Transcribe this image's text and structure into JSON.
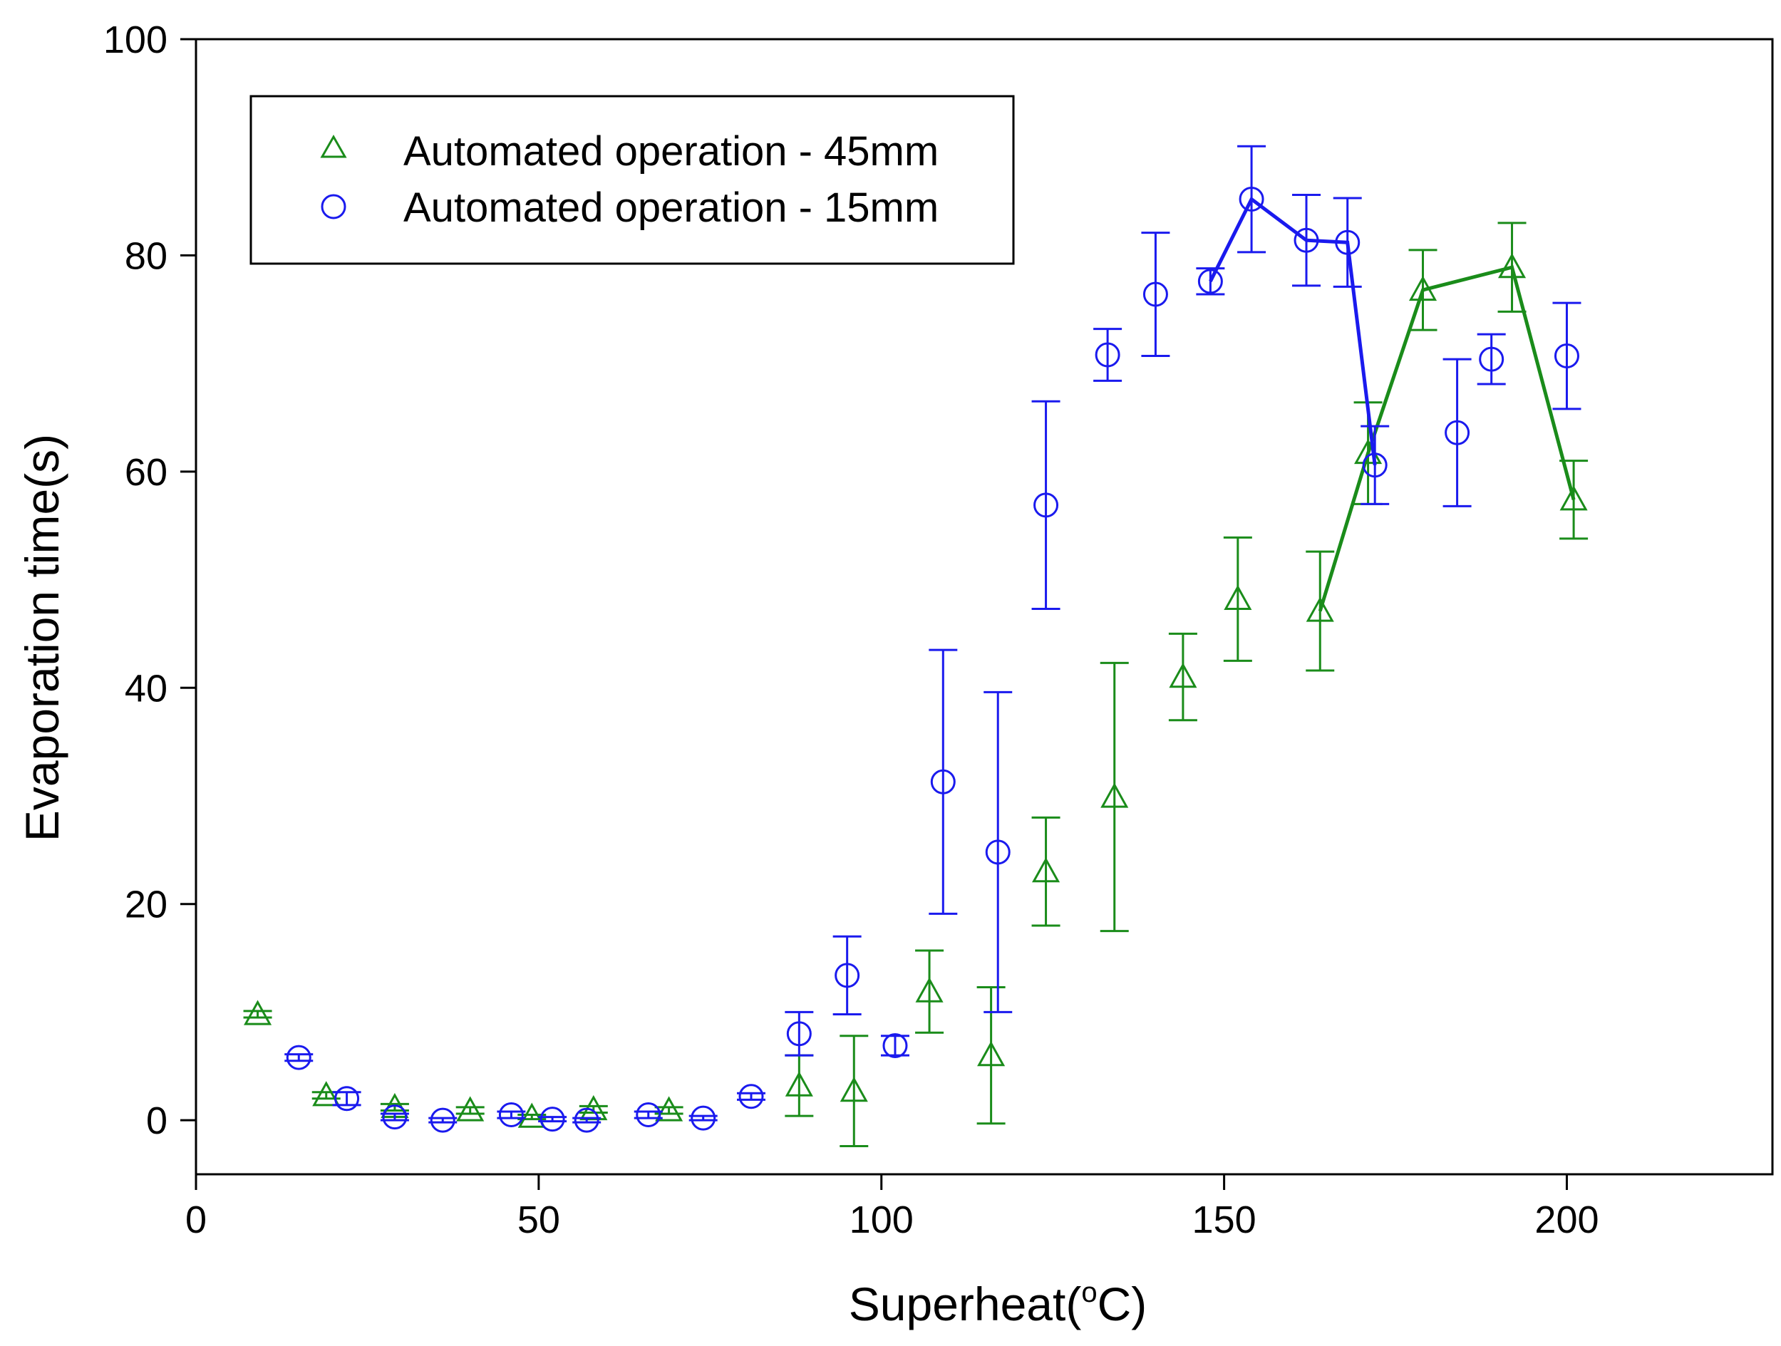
{
  "chart_data": {
    "type": "scatter",
    "title": "",
    "xlabel": "Superheat(",
    "xlabel_sup": "o",
    "xlabel_tail": "C)",
    "ylabel": "Evaporation time(s)",
    "xlim": [
      0,
      230
    ],
    "ylim": [
      -5,
      100
    ],
    "xticks": [
      0,
      50,
      100,
      150,
      200
    ],
    "yticks": [
      0,
      20,
      40,
      60,
      80,
      100
    ],
    "legend_position": "top-left",
    "series": [
      {
        "name": "Automated operation - 45mm",
        "color": "#1a8c1a",
        "marker": "triangle",
        "points": [
          {
            "x": 9,
            "y": 9.8,
            "err": 0.3
          },
          {
            "x": 19,
            "y": 2.3,
            "err": 0.3
          },
          {
            "x": 29,
            "y": 1.2,
            "err": 0.3
          },
          {
            "x": 40,
            "y": 0.9,
            "err": 0.3
          },
          {
            "x": 49,
            "y": 0.3,
            "err": 0.2
          },
          {
            "x": 58,
            "y": 1.0,
            "err": 0.3
          },
          {
            "x": 69,
            "y": 0.9,
            "err": 0.3
          },
          {
            "x": 88,
            "y": 3.2,
            "err": 2.8
          },
          {
            "x": 96,
            "y": 2.7,
            "err": 5.1
          },
          {
            "x": 107,
            "y": 11.9,
            "err": 3.8
          },
          {
            "x": 116,
            "y": 6.0,
            "err": 6.3
          },
          {
            "x": 124,
            "y": 23.0,
            "err": 5.0
          },
          {
            "x": 134,
            "y": 29.9,
            "err": 12.4
          },
          {
            "x": 144,
            "y": 41.0,
            "err": 4.0
          },
          {
            "x": 152,
            "y": 48.2,
            "err": 5.7
          },
          {
            "x": 164,
            "y": 47.1,
            "err": 5.5
          },
          {
            "x": 171,
            "y": 61.7,
            "err": 4.7
          },
          {
            "x": 179,
            "y": 76.8,
            "err": 3.7
          },
          {
            "x": 192,
            "y": 78.9,
            "err": 4.1
          },
          {
            "x": 201,
            "y": 57.4,
            "err": 3.6
          }
        ],
        "line_from_x": 164
      },
      {
        "name": "Automated operation - 15mm",
        "color": "#1a1aee",
        "marker": "circle",
        "points": [
          {
            "x": 15,
            "y": 5.8,
            "err": 0.3
          },
          {
            "x": 22,
            "y": 2.0,
            "err": 0.6
          },
          {
            "x": 29,
            "y": 0.3,
            "err": 0.3
          },
          {
            "x": 36,
            "y": 0.0,
            "err": 0.2
          },
          {
            "x": 46,
            "y": 0.5,
            "err": 0.3
          },
          {
            "x": 52,
            "y": 0.1,
            "err": 0.2
          },
          {
            "x": 57,
            "y": 0.0,
            "err": 0.2
          },
          {
            "x": 66,
            "y": 0.5,
            "err": 0.3
          },
          {
            "x": 74,
            "y": 0.2,
            "err": 0.2
          },
          {
            "x": 81,
            "y": 2.2,
            "err": 0.3
          },
          {
            "x": 88,
            "y": 8.0,
            "err": 2.0
          },
          {
            "x": 95,
            "y": 13.4,
            "err": 3.6
          },
          {
            "x": 102,
            "y": 6.9,
            "err": 0.9
          },
          {
            "x": 109,
            "y": 31.3,
            "err": 12.2
          },
          {
            "x": 117,
            "y": 24.8,
            "err": 14.8
          },
          {
            "x": 124,
            "y": 56.9,
            "err": 9.6
          },
          {
            "x": 133,
            "y": 70.8,
            "err": 2.4
          },
          {
            "x": 140,
            "y": 76.4,
            "err": 5.7
          },
          {
            "x": 148,
            "y": 77.6,
            "err": 1.2
          },
          {
            "x": 154,
            "y": 85.2,
            "err": 4.9
          },
          {
            "x": 162,
            "y": 81.4,
            "err": 4.2
          },
          {
            "x": 168,
            "y": 81.2,
            "err": 4.1
          },
          {
            "x": 172,
            "y": 60.6,
            "err": 3.6
          },
          {
            "x": 184,
            "y": 63.6,
            "err": 6.8
          },
          {
            "x": 189,
            "y": 70.4,
            "err": 2.3
          },
          {
            "x": 200,
            "y": 70.7,
            "err": 4.9
          }
        ],
        "line_from_x": 148,
        "line_to_x": 172
      }
    ]
  }
}
